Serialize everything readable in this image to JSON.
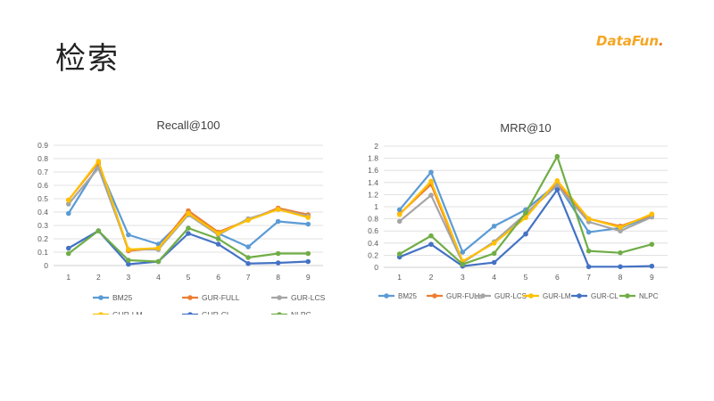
{
  "slide": {
    "title": "检索",
    "logo_text_main": "DataFun",
    "logo_text_tail": "."
  },
  "colors": {
    "BM25": "#5b9bd5",
    "GUR-FULL": "#ed7d31",
    "GUR-LCS": "#a5a5a5",
    "GUR-LM": "#ffc000",
    "GUR-CL": "#4472c4",
    "NLPC": "#70ad47"
  },
  "chart_data": [
    {
      "type": "line",
      "title": "Recall@100",
      "x": [
        1,
        2,
        3,
        4,
        5,
        6,
        7,
        8,
        9
      ],
      "ylim": [
        0,
        0.9
      ],
      "yticks": [
        0,
        0.1,
        0.2,
        0.3,
        0.4,
        0.5,
        0.6,
        0.7,
        0.8,
        0.9
      ],
      "grid": true,
      "legend_position": "bottom",
      "series": [
        {
          "name": "BM25",
          "values": [
            0.39,
            0.75,
            0.23,
            0.16,
            0.38,
            0.24,
            0.14,
            0.33,
            0.31
          ]
        },
        {
          "name": "GUR-FULL",
          "values": [
            0.49,
            0.77,
            0.11,
            0.13,
            0.41,
            0.25,
            0.34,
            0.43,
            0.38
          ]
        },
        {
          "name": "GUR-LCS",
          "values": [
            0.46,
            0.73,
            0.12,
            0.12,
            0.38,
            0.23,
            0.35,
            0.42,
            0.37
          ]
        },
        {
          "name": "GUR-LM",
          "values": [
            0.49,
            0.78,
            0.12,
            0.13,
            0.39,
            0.24,
            0.34,
            0.42,
            0.36
          ]
        },
        {
          "name": "GUR-CL",
          "values": [
            0.13,
            0.26,
            0.01,
            0.03,
            0.24,
            0.16,
            0.015,
            0.02,
            0.03
          ]
        },
        {
          "name": "NLPC",
          "values": [
            0.09,
            0.26,
            0.04,
            0.03,
            0.28,
            0.2,
            0.06,
            0.09,
            0.09
          ]
        }
      ]
    },
    {
      "type": "line",
      "title": "MRR@10",
      "x": [
        1,
        2,
        3,
        4,
        5,
        6,
        7,
        8,
        9
      ],
      "ylim": [
        0,
        2
      ],
      "yticks": [
        0,
        0.2,
        0.4,
        0.6,
        0.8,
        1,
        1.2,
        1.4,
        1.6,
        1.8,
        2
      ],
      "grid": true,
      "legend_position": "bottom",
      "series": [
        {
          "name": "BM25",
          "values": [
            0.95,
            1.57,
            0.25,
            0.68,
            0.95,
            1.38,
            0.58,
            0.65,
            0.85
          ]
        },
        {
          "name": "GUR-FULL",
          "values": [
            0.88,
            1.37,
            0.08,
            0.42,
            0.88,
            1.37,
            0.8,
            0.68,
            0.86
          ]
        },
        {
          "name": "GUR-LCS",
          "values": [
            0.76,
            1.19,
            0.08,
            0.42,
            0.88,
            1.35,
            0.75,
            0.6,
            0.83
          ]
        },
        {
          "name": "GUR-LM",
          "values": [
            0.87,
            1.42,
            0.1,
            0.4,
            0.82,
            1.43,
            0.8,
            0.66,
            0.88
          ]
        },
        {
          "name": "GUR-CL",
          "values": [
            0.17,
            0.38,
            0.02,
            0.08,
            0.55,
            1.28,
            0.01,
            0.01,
            0.02
          ]
        },
        {
          "name": "NLPC",
          "values": [
            0.22,
            0.52,
            0.05,
            0.23,
            0.9,
            1.83,
            0.27,
            0.24,
            0.38
          ]
        }
      ]
    }
  ]
}
